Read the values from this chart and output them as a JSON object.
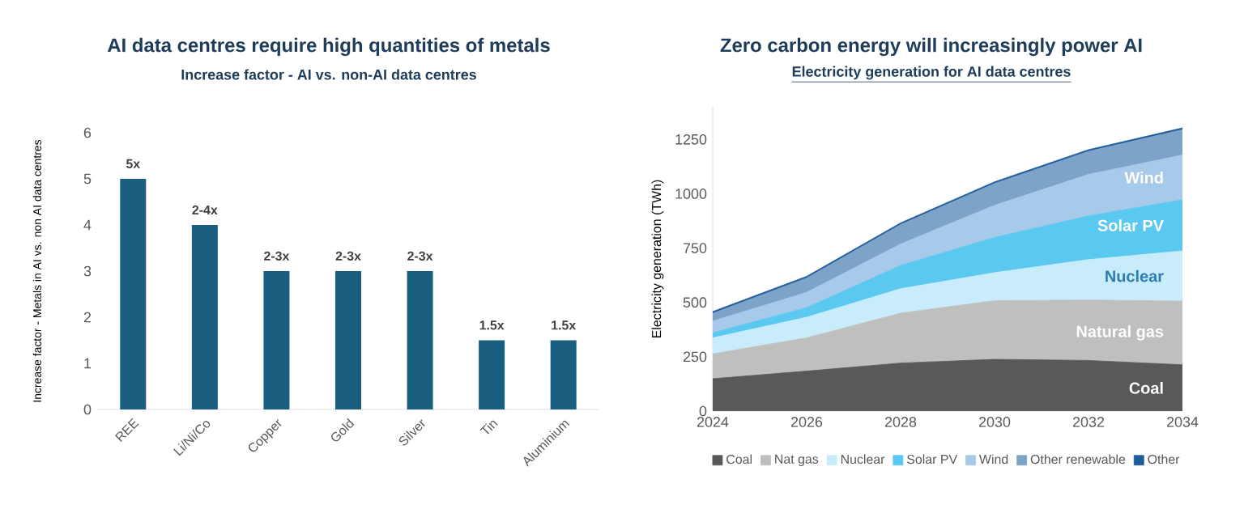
{
  "chart_data": [
    {
      "type": "bar",
      "title": "AI data centres require high quantities of metals",
      "subtitle": "Increase factor - AI vs. non-AI data centres",
      "ylabel": "Increase factor - Metals in AI vs. non AI data centres",
      "categories": [
        "REE",
        "Li/Ni/Co",
        "Copper",
        "Gold",
        "Silver",
        "Tin",
        "Aluminium"
      ],
      "values": [
        5,
        4,
        3,
        3,
        3,
        1.5,
        1.5
      ],
      "value_labels": [
        "5x",
        "2-4x",
        "2-3x",
        "2-3x",
        "2-3x",
        "1.5x",
        "1.5x"
      ],
      "color": "#1a5f80",
      "ylim": [
        0,
        6
      ],
      "yticks": [
        0,
        1,
        2,
        3,
        4,
        5,
        6
      ]
    },
    {
      "type": "area",
      "stacked": true,
      "title": "Zero carbon energy will increasingly power AI",
      "subtitle": "Electricity generation for AI data centres",
      "ylabel": "Electricity generation (TWh)",
      "x": [
        2024,
        2026,
        2028,
        2030,
        2032,
        2034
      ],
      "series": [
        {
          "name": "Coal",
          "color": "#595959",
          "values": [
            149,
            184,
            221,
            238,
            233,
            213
          ]
        },
        {
          "name": "Nat gas",
          "color": "#bfbfbf",
          "values": [
            114,
            153,
            230,
            270,
            278,
            293
          ]
        },
        {
          "name": "Nuclear",
          "color": "#c9ecfa",
          "values": [
            74,
            95,
            112,
            129,
            186,
            231
          ]
        },
        {
          "name": "Solar PV",
          "color": "#5bc8f0",
          "values": [
            23,
            44,
            107,
            162,
            201,
            235
          ]
        },
        {
          "name": "Wind",
          "color": "#a7c9ea",
          "values": [
            54,
            70,
            99,
            148,
            191,
            206
          ]
        },
        {
          "name": "Other renewable",
          "color": "#7ea3c8",
          "values": [
            36,
            66,
            89,
            100,
            106,
            117
          ]
        },
        {
          "name": "Other",
          "color": "#1f5c99",
          "values": [
            8,
            8,
            8,
            8,
            8,
            8
          ]
        }
      ],
      "annotations": [
        "Coal",
        "Natural gas",
        "Nuclear",
        "Solar PV",
        "Wind"
      ],
      "xlim": [
        2024,
        2034
      ],
      "xticks": [
        2024,
        2026,
        2028,
        2030,
        2032,
        2034
      ],
      "ylim": [
        0,
        1400
      ],
      "yticks": [
        0,
        250,
        500,
        750,
        1000,
        1250
      ],
      "legend": "bottom"
    }
  ]
}
